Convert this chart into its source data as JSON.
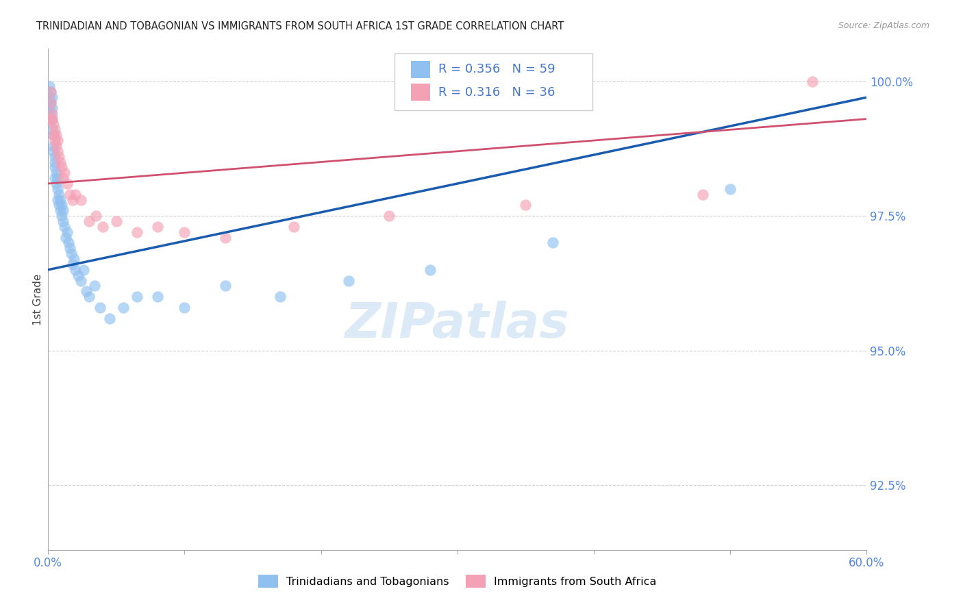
{
  "title": "TRINIDADIAN AND TOBAGONIAN VS IMMIGRANTS FROM SOUTH AFRICA 1ST GRADE CORRELATION CHART",
  "source": "Source: ZipAtlas.com",
  "ylabel": "1st Grade",
  "ytick_labels": [
    "92.5%",
    "95.0%",
    "97.5%",
    "100.0%"
  ],
  "ytick_values": [
    0.925,
    0.95,
    0.975,
    1.0
  ],
  "xlim": [
    0.0,
    0.6
  ],
  "ylim": [
    0.913,
    1.006
  ],
  "legend1_label": "Trinidadians and Tobagonians",
  "legend2_label": "Immigrants from South Africa",
  "R_blue": 0.356,
  "N_blue": 59,
  "R_pink": 0.316,
  "N_pink": 36,
  "color_blue": "#90C0F0",
  "color_pink": "#F4A0B5",
  "line_color_blue": "#1A5CB0",
  "line_color_pink": "#D05070",
  "blue_x": [
    0.001,
    0.001,
    0.001,
    0.001,
    0.002,
    0.002,
    0.002,
    0.002,
    0.003,
    0.003,
    0.003,
    0.003,
    0.004,
    0.004,
    0.004,
    0.005,
    0.005,
    0.005,
    0.005,
    0.006,
    0.006,
    0.007,
    0.007,
    0.007,
    0.008,
    0.008,
    0.009,
    0.009,
    0.01,
    0.01,
    0.011,
    0.011,
    0.012,
    0.013,
    0.014,
    0.015,
    0.016,
    0.017,
    0.018,
    0.019,
    0.02,
    0.022,
    0.024,
    0.026,
    0.028,
    0.03,
    0.034,
    0.038,
    0.045,
    0.055,
    0.065,
    0.08,
    0.1,
    0.13,
    0.17,
    0.22,
    0.28,
    0.37,
    0.5
  ],
  "blue_y": [
    0.999,
    0.997,
    0.996,
    0.995,
    0.998,
    0.996,
    0.994,
    0.993,
    0.997,
    0.995,
    0.993,
    0.991,
    0.99,
    0.988,
    0.987,
    0.986,
    0.985,
    0.984,
    0.982,
    0.983,
    0.981,
    0.982,
    0.98,
    0.978,
    0.979,
    0.977,
    0.978,
    0.976,
    0.977,
    0.975,
    0.976,
    0.974,
    0.973,
    0.971,
    0.972,
    0.97,
    0.969,
    0.968,
    0.966,
    0.967,
    0.965,
    0.964,
    0.963,
    0.965,
    0.961,
    0.96,
    0.962,
    0.958,
    0.956,
    0.958,
    0.96,
    0.96,
    0.958,
    0.962,
    0.96,
    0.963,
    0.965,
    0.97,
    0.98
  ],
  "pink_x": [
    0.001,
    0.002,
    0.002,
    0.003,
    0.003,
    0.004,
    0.004,
    0.005,
    0.005,
    0.006,
    0.006,
    0.007,
    0.007,
    0.008,
    0.009,
    0.01,
    0.011,
    0.012,
    0.014,
    0.016,
    0.018,
    0.02,
    0.024,
    0.03,
    0.035,
    0.04,
    0.05,
    0.065,
    0.08,
    0.1,
    0.13,
    0.18,
    0.25,
    0.35,
    0.48,
    0.56
  ],
  "pink_y": [
    0.993,
    0.998,
    0.996,
    0.994,
    0.993,
    0.992,
    0.99,
    0.991,
    0.989,
    0.99,
    0.988,
    0.989,
    0.987,
    0.986,
    0.985,
    0.984,
    0.982,
    0.983,
    0.981,
    0.979,
    0.978,
    0.979,
    0.978,
    0.974,
    0.975,
    0.973,
    0.974,
    0.972,
    0.973,
    0.972,
    0.971,
    0.973,
    0.975,
    0.977,
    0.979,
    1.0
  ],
  "blue_line_x0": 0.0,
  "blue_line_y0": 0.965,
  "blue_line_x1": 0.6,
  "blue_line_y1": 0.997,
  "pink_line_x0": 0.0,
  "pink_line_y0": 0.981,
  "pink_line_x1": 0.6,
  "pink_line_y1": 0.993
}
